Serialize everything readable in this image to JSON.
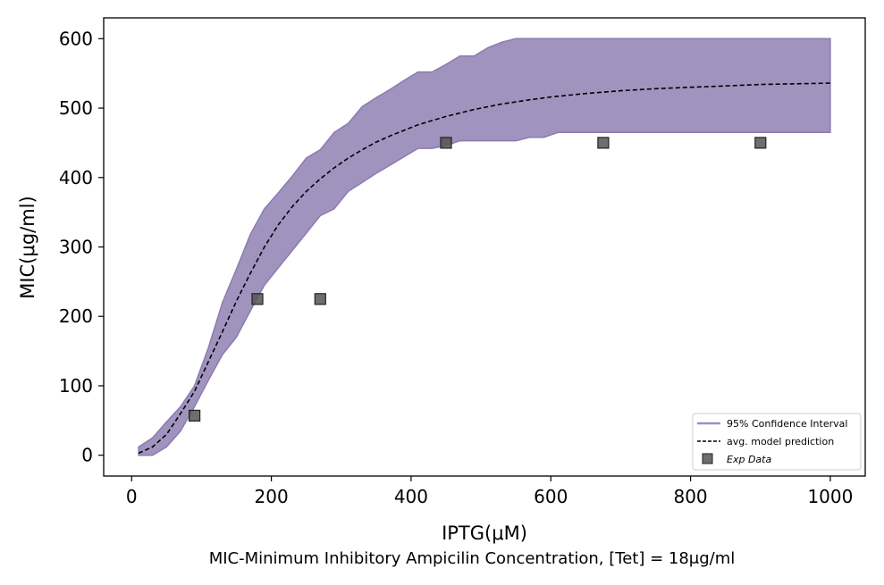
{
  "chart_data": {
    "type": "area",
    "xlabel": "IPTG(μM)",
    "ylabel": "MIC(μg/ml)",
    "caption": "MIC-Minimum Inhibitory Ampicilin Concentration, [Tet] = 18μg/ml",
    "xlim": [
      -40,
      1050
    ],
    "ylim": [
      -30,
      630
    ],
    "xticks": [
      0,
      200,
      400,
      600,
      800,
      1000
    ],
    "yticks": [
      0,
      100,
      200,
      300,
      400,
      500,
      600
    ],
    "grid": false,
    "legend_position": "lower right",
    "series": [
      {
        "name": "95% Confidence Interval",
        "kind": "band",
        "color": "#8b7bb0",
        "x": [
          10,
          30,
          50,
          70,
          90,
          110,
          130,
          150,
          170,
          190,
          210,
          230,
          250,
          270,
          290,
          310,
          330,
          350,
          370,
          390,
          410,
          430,
          450,
          470,
          490,
          510,
          530,
          550,
          570,
          590,
          610,
          650,
          700,
          800,
          900,
          1000
        ],
        "lower": [
          0,
          0,
          12,
          35,
          70,
          108,
          145,
          170,
          208,
          245,
          270,
          295,
          320,
          345,
          355,
          380,
          393,
          406,
          418,
          430,
          442,
          442,
          446,
          453,
          453,
          453,
          453,
          453,
          458,
          458,
          465,
          465,
          465,
          465,
          465,
          465
        ],
        "upper": [
          12,
          25,
          48,
          70,
          100,
          155,
          220,
          268,
          318,
          355,
          378,
          402,
          428,
          440,
          465,
          478,
          502,
          515,
          527,
          540,
          552,
          552,
          563,
          575,
          575,
          587,
          595,
          600,
          600,
          600,
          600,
          600,
          600,
          600,
          600,
          600
        ]
      },
      {
        "name": "avg. model prediction",
        "kind": "line",
        "style": "dashed",
        "color": "#000000",
        "x": [
          10,
          30,
          50,
          70,
          90,
          110,
          130,
          150,
          170,
          190,
          210,
          230,
          250,
          270,
          290,
          310,
          330,
          350,
          370,
          390,
          410,
          430,
          450,
          470,
          490,
          510,
          530,
          550,
          570,
          600,
          650,
          700,
          750,
          800,
          850,
          900,
          950,
          1000
        ],
        "y": [
          3,
          12,
          30,
          60,
          92,
          135,
          178,
          222,
          262,
          300,
          332,
          358,
          380,
          398,
          414,
          428,
          440,
          451,
          460,
          468,
          476,
          482,
          488,
          493,
          498,
          502,
          506,
          509,
          512,
          516,
          521,
          525,
          528,
          530,
          532,
          534,
          535,
          536
        ]
      },
      {
        "name": "Exp Data",
        "kind": "scatter",
        "marker": "square",
        "color": "#555555",
        "x": [
          90,
          180,
          270,
          450,
          675,
          900
        ],
        "y": [
          57,
          225,
          225,
          450,
          450,
          450
        ]
      }
    ]
  }
}
